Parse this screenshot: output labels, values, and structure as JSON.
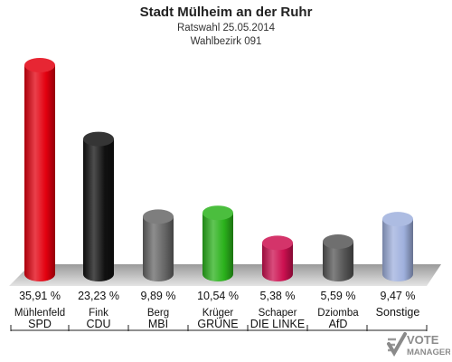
{
  "header": {
    "title": "Stadt Mülheim an der Ruhr",
    "subtitle1": "Ratswahl 25.05.2014",
    "subtitle2": "Wahlbezirk 091"
  },
  "logo": {
    "line1": "VOTE",
    "line2": "MANAGER"
  },
  "chart_data": {
    "type": "bar",
    "title": "Stadt Mülheim an der Ruhr",
    "subtitle": [
      "Ratswahl 25.05.2014",
      "Wahlbezirk 091"
    ],
    "unit": "%",
    "ylim": [
      0,
      40
    ],
    "grid": false,
    "categories": [
      "SPD",
      "CDU",
      "MBI",
      "GRÜNE",
      "DIE LINKE",
      "AfD",
      "Sonstige"
    ],
    "candidates": [
      "Mühlenfeld",
      "Fink",
      "Berg",
      "Krüger",
      "Schaper",
      "Dziomba",
      ""
    ],
    "labels": [
      "35,91 %",
      "23,23 %",
      "9,89 %",
      "10,54 %",
      "5,38 %",
      "5,59 %",
      "9,47 %"
    ],
    "values": [
      35.91,
      23.23,
      9.89,
      10.54,
      5.38,
      5.59,
      9.47
    ],
    "colors": [
      "#e3000f",
      "#111111",
      "#676767",
      "#2bb21c",
      "#cc1050",
      "#555555",
      "#9fb0dd"
    ]
  }
}
